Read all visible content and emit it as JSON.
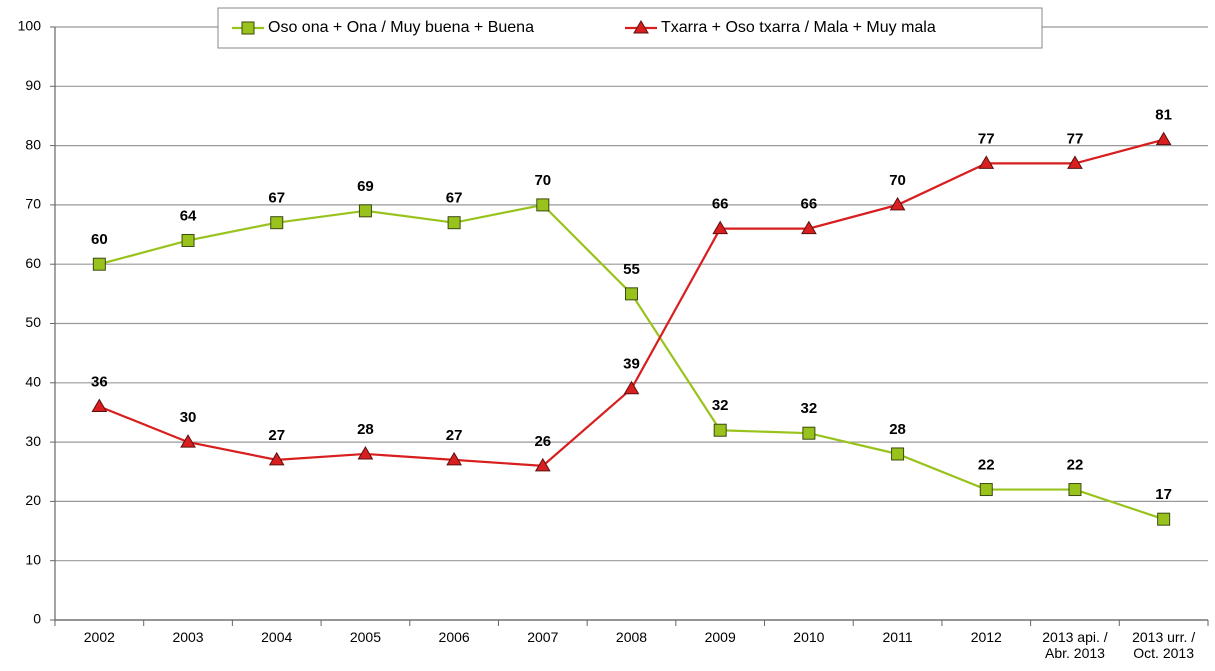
{
  "chart_data": {
    "type": "line",
    "categories": [
      "2002",
      "2003",
      "2004",
      "2005",
      "2006",
      "2007",
      "2008",
      "2009",
      "2010",
      "2011",
      "2012",
      "2013 api. /\nAbr. 2013",
      "2013 urr. /\nOct. 2013"
    ],
    "series": [
      {
        "name": "Oso ona + Ona / Muy buena + Buena",
        "color": "#99c31c",
        "marker": "square",
        "values": [
          60,
          64,
          67,
          69,
          67,
          70,
          55,
          32,
          31.5,
          28,
          22,
          22,
          17
        ],
        "value_labels": [
          "60",
          "64",
          "67",
          "69",
          "67",
          "70",
          "55",
          "32",
          "32",
          "28",
          "22",
          "22",
          "17"
        ]
      },
      {
        "name": "Txarra + Oso txarra / Mala + Muy mala",
        "color": "#d81e1e",
        "marker": "triangle",
        "values": [
          36,
          30,
          27,
          28,
          27,
          26,
          39,
          66,
          66,
          70,
          77,
          77,
          81
        ]
      }
    ],
    "ylim": [
      0,
      100
    ],
    "yticks": [
      0,
      10,
      20,
      30,
      40,
      50,
      60,
      70,
      80,
      90,
      100
    ],
    "grid": true,
    "legend": "top"
  }
}
